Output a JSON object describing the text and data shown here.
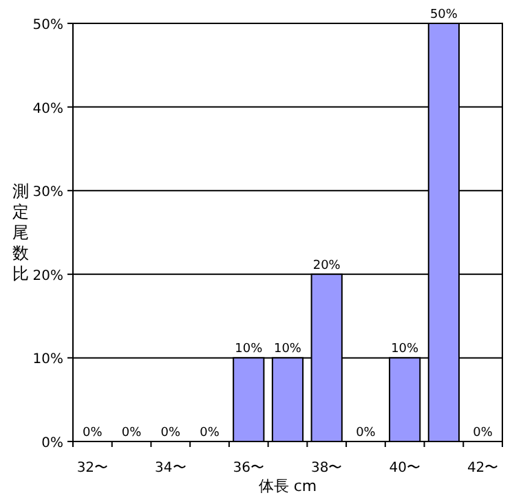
{
  "chart_data": {
    "type": "bar",
    "xlabel": "体長 cm",
    "ylabel": "測定尾数比",
    "categories": [
      "32〜",
      null,
      "34〜",
      null,
      "36〜",
      null,
      "38〜",
      null,
      "40〜",
      null,
      "42〜"
    ],
    "values": [
      0,
      0,
      0,
      0,
      10,
      10,
      20,
      0,
      10,
      50,
      0
    ],
    "value_labels": [
      "0%",
      "0%",
      "0%",
      "0%",
      "10%",
      "10%",
      "20%",
      "0%",
      "10%",
      "50%",
      "0%"
    ],
    "color": "#9999ff",
    "ylim": [
      0,
      50
    ],
    "yticks": [
      {
        "value": 0,
        "label": "0%"
      },
      {
        "value": 10,
        "label": "10%"
      },
      {
        "value": 20,
        "label": "20%"
      },
      {
        "value": 30,
        "label": "30%"
      },
      {
        "value": 40,
        "label": "40%"
      },
      {
        "value": 50,
        "label": "50%"
      }
    ],
    "grid": "y"
  }
}
